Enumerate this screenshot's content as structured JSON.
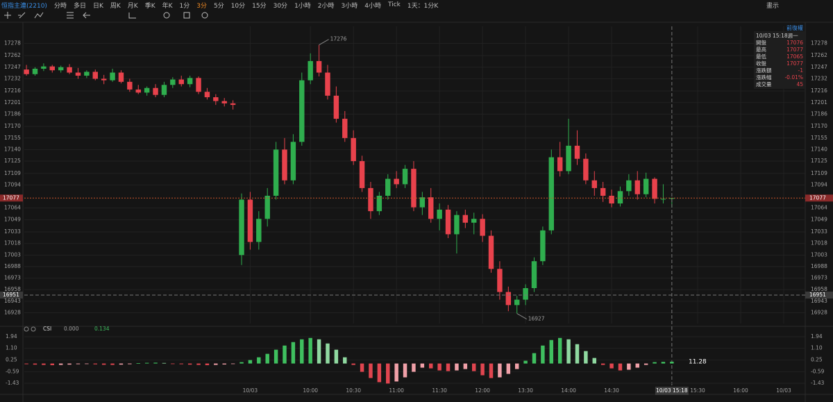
{
  "toolbar": {
    "symbol": "恒指主連(2210)",
    "periods": [
      "分時",
      "多日",
      "日K",
      "周K",
      "月K",
      "季K",
      "年K",
      "1分",
      "3分",
      "5分",
      "10分",
      "15分",
      "30分",
      "1小時",
      "2小時",
      "3小時",
      "4小時",
      "Tick",
      "1天：1分K"
    ],
    "active_period_index": 8,
    "right": "畫示",
    "adjust": "前復權"
  },
  "info_panel": {
    "time": "10/03 15:18週一",
    "rows": [
      [
        "開盤",
        "17076"
      ],
      [
        "最高",
        "17077"
      ],
      [
        "最低",
        "17065"
      ],
      [
        "收盤",
        "17077"
      ],
      [
        "漲跌額",
        "-1"
      ],
      [
        "漲跌幅",
        "-0.01%"
      ],
      [
        "成交量",
        "45"
      ]
    ]
  },
  "chart_data": [
    {
      "type": "candlestick",
      "up_color": "#2fae4e",
      "down_color": "#e8424c",
      "grid": true,
      "open": [
        17244,
        17238,
        17245,
        17248,
        17243,
        17247,
        17240,
        17236,
        17241,
        17232,
        17230,
        17240,
        17228,
        17218,
        17214,
        17220,
        17211,
        17224,
        17231,
        17225,
        17233,
        17215,
        17208,
        17203,
        17200,
        17003,
        17075,
        17020,
        17050,
        17080,
        17140,
        17100,
        17150,
        17230,
        17255,
        17240,
        17210,
        17180,
        17155,
        17125,
        17090,
        17060,
        17080,
        17102,
        17095,
        17115,
        17065,
        17078,
        17050,
        17062,
        17030,
        17055,
        17045,
        17050,
        17028,
        16985,
        16955,
        16938,
        16945,
        16960,
        16995,
        17035,
        17130,
        17112,
        17145,
        17128,
        17100,
        17090,
        17080,
        17070,
        17086,
        17100,
        17082,
        17102,
        17076,
        17076
      ],
      "high": [
        17250,
        17247,
        17252,
        17250,
        17249,
        17251,
        17246,
        17243,
        17244,
        17237,
        17245,
        17243,
        17232,
        17224,
        17222,
        17225,
        17228,
        17234,
        17236,
        17236,
        17235,
        17220,
        17212,
        17207,
        17204,
        17083,
        17085,
        17060,
        17090,
        17150,
        17155,
        17160,
        17240,
        17265,
        17276,
        17250,
        17222,
        17190,
        17165,
        17132,
        17098,
        17085,
        17108,
        17112,
        17120,
        17125,
        17085,
        17090,
        17070,
        17068,
        17060,
        17062,
        17058,
        17056,
        17035,
        16995,
        16962,
        16950,
        16965,
        17000,
        17040,
        17140,
        17150,
        17180,
        17165,
        17135,
        17112,
        17098,
        17088,
        17092,
        17108,
        17112,
        17110,
        17104,
        17095,
        17077
      ],
      "low": [
        17236,
        17236,
        17242,
        17240,
        17240,
        17238,
        17232,
        17233,
        17230,
        17225,
        17228,
        17226,
        17215,
        17212,
        17210,
        17208,
        17208,
        17220,
        17222,
        17221,
        17212,
        17205,
        17198,
        17196,
        17192,
        16990,
        17010,
        17010,
        17040,
        17075,
        17095,
        17095,
        17145,
        17225,
        17235,
        17205,
        17175,
        17150,
        17120,
        17085,
        17050,
        17055,
        17075,
        17090,
        17090,
        17060,
        17055,
        17045,
        17035,
        17025,
        17005,
        17038,
        17030,
        17020,
        16980,
        16945,
        16930,
        16927,
        16938,
        16955,
        16990,
        17030,
        17105,
        17108,
        17120,
        17095,
        17080,
        17072,
        17065,
        17066,
        17080,
        17075,
        17078,
        17070,
        17070,
        17065
      ],
      "close": [
        17238,
        17245,
        17248,
        17243,
        17247,
        17240,
        17236,
        17241,
        17232,
        17230,
        17240,
        17228,
        17218,
        17214,
        17220,
        17211,
        17224,
        17231,
        17225,
        17233,
        17215,
        17208,
        17203,
        17200,
        17198,
        17075,
        17020,
        17050,
        17080,
        17140,
        17100,
        17150,
        17230,
        17255,
        17240,
        17210,
        17180,
        17155,
        17125,
        17090,
        17060,
        17080,
        17102,
        17095,
        17115,
        17065,
        17078,
        17050,
        17062,
        17030,
        17055,
        17045,
        17050,
        17028,
        16985,
        16955,
        16938,
        16945,
        16960,
        16995,
        17035,
        17130,
        17112,
        17145,
        17128,
        17100,
        17090,
        17080,
        17070,
        17086,
        17100,
        17082,
        17102,
        17076,
        17076,
        17077
      ],
      "xlim": [
        -0.25,
        90.5
      ],
      "xticks": [
        {
          "value": 26,
          "label": "10/03"
        },
        {
          "value": 33,
          "label": "10:00"
        },
        {
          "value": 38,
          "label": "10:30"
        },
        {
          "value": 43,
          "label": "11:00"
        },
        {
          "value": 48,
          "label": "11:30"
        },
        {
          "value": 53,
          "label": "12:00"
        },
        {
          "value": 58,
          "label": "13:30"
        },
        {
          "value": 63,
          "label": "14:00"
        },
        {
          "value": 68,
          "label": "14:30"
        },
        {
          "value": 78,
          "label": "15:30"
        },
        {
          "value": 83,
          "label": "16:00"
        },
        {
          "value": 88,
          "label": "10/03"
        }
      ],
      "ylim": [
        16914,
        17291
      ],
      "yticks": [
        17278,
        17262,
        17247,
        17232,
        17216,
        17201,
        17186,
        17170,
        17155,
        17140,
        17125,
        17109,
        17094,
        17064,
        17049,
        17033,
        17018,
        17003,
        16988,
        16973,
        16958,
        16943,
        16928
      ],
      "last_price": 17077,
      "crosshair_price": 16951,
      "crosshair_time": "10/03 15:18",
      "max_label": 17276,
      "min_label": 16927
    },
    {
      "type": "bar",
      "title": "CSI",
      "legend_values": [
        "0.000",
        "0.134"
      ],
      "last_label": "11.28",
      "colors": {
        "pos_up": "#3fbf5f",
        "pos_down": "#8fd9a0",
        "neg_down": "#e0454f",
        "neg_up": "#f0a0a8"
      },
      "values": [
        -0.05,
        -0.08,
        -0.1,
        -0.12,
        -0.1,
        -0.08,
        -0.05,
        -0.03,
        -0.06,
        -0.09,
        -0.1,
        -0.08,
        -0.05,
        0.02,
        0.05,
        0.06,
        0.04,
        -0.02,
        -0.05,
        -0.08,
        -0.1,
        -0.12,
        -0.1,
        -0.07,
        -0.04,
        0.1,
        0.25,
        0.45,
        0.7,
        1.0,
        1.3,
        1.55,
        1.75,
        1.85,
        1.75,
        1.45,
        1.0,
        0.45,
        -0.1,
        -0.6,
        -1.05,
        -1.35,
        -1.45,
        -1.3,
        -1.0,
        -0.6,
        -0.3,
        -0.35,
        -0.5,
        -0.55,
        -0.5,
        -0.4,
        -0.55,
        -0.85,
        -1.05,
        -1.0,
        -0.75,
        -0.4,
        0.2,
        0.75,
        1.3,
        1.7,
        1.85,
        1.75,
        1.4,
        0.9,
        0.4,
        -0.1,
        -0.35,
        -0.5,
        -0.45,
        -0.3,
        -0.1,
        0.1,
        0.12,
        0.134
      ],
      "ylim": [
        -1.83,
        2.39
      ],
      "yticks": [
        1.94,
        {
          "value": 1.1,
          "label": "1.10"
        },
        0.25,
        -0.59,
        -1.43
      ]
    }
  ]
}
